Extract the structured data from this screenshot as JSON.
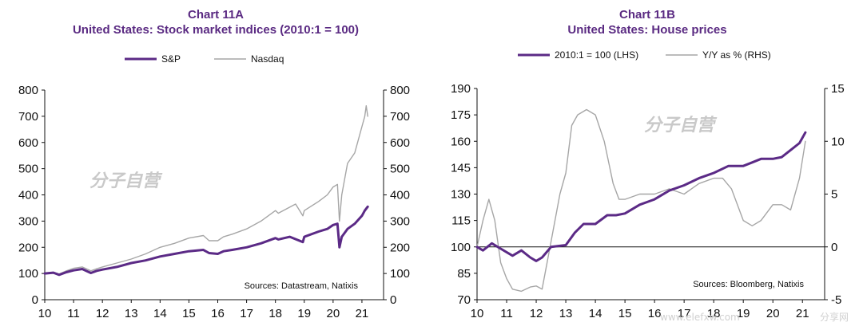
{
  "watermark": "分子自营",
  "corner_watermarks": [
    "www.elefxw.com",
    "分享网"
  ],
  "chart_data": [
    {
      "type": "line",
      "title": "Chart 11A",
      "subtitle": "United States: Stock market indices (2010:1 = 100)",
      "source": "Sources:  Datastream,  Natixis",
      "x_ticks": [
        "10",
        "11",
        "12",
        "13",
        "14",
        "15",
        "16",
        "17",
        "18",
        "19",
        "20",
        "21"
      ],
      "xlim": [
        2010,
        2021.75
      ],
      "y_left": {
        "ticks": [
          "0",
          "100",
          "200",
          "300",
          "400",
          "500",
          "600",
          "700",
          "800"
        ],
        "lim": [
          0,
          800
        ]
      },
      "y_right": {
        "ticks": [
          "0",
          "100",
          "200",
          "300",
          "400",
          "500",
          "600",
          "700",
          "800"
        ],
        "lim": [
          0,
          800
        ]
      },
      "grid": false,
      "legend_position": "top",
      "colors": {
        "sp": "#5b2a86",
        "nasdaq": "#a6a6a6"
      },
      "series": [
        {
          "name": "S&P",
          "axis": "left",
          "color": "#5b2a86",
          "width": 3,
          "x": [
            2010.0,
            2010.3,
            2010.5,
            2010.75,
            2011.0,
            2011.3,
            2011.6,
            2011.8,
            2012.0,
            2012.5,
            2013.0,
            2013.5,
            2014.0,
            2014.5,
            2015.0,
            2015.5,
            2015.7,
            2016.0,
            2016.2,
            2016.5,
            2017.0,
            2017.5,
            2018.0,
            2018.1,
            2018.5,
            2018.95,
            2019.0,
            2019.5,
            2019.8,
            2020.0,
            2020.15,
            2020.22,
            2020.3,
            2020.5,
            2020.75,
            2021.0,
            2021.1,
            2021.2
          ],
          "y": [
            100,
            103,
            95,
            105,
            112,
            117,
            102,
            110,
            115,
            125,
            140,
            150,
            165,
            175,
            185,
            190,
            178,
            175,
            185,
            190,
            200,
            215,
            235,
            230,
            240,
            220,
            240,
            260,
            270,
            285,
            290,
            200,
            240,
            270,
            290,
            320,
            340,
            355
          ]
        },
        {
          "name": "Nasdaq",
          "axis": "left",
          "color": "#a6a6a6",
          "width": 1.4,
          "x": [
            2010.0,
            2010.3,
            2010.5,
            2010.75,
            2011.0,
            2011.3,
            2011.6,
            2011.8,
            2012.0,
            2012.5,
            2013.0,
            2013.5,
            2014.0,
            2014.5,
            2015.0,
            2015.5,
            2015.7,
            2016.0,
            2016.2,
            2016.5,
            2017.0,
            2017.5,
            2018.0,
            2018.1,
            2018.7,
            2018.95,
            2019.0,
            2019.5,
            2019.8,
            2020.0,
            2020.15,
            2020.22,
            2020.3,
            2020.5,
            2020.75,
            2021.0,
            2021.1,
            2021.15,
            2021.2
          ],
          "y": [
            100,
            105,
            98,
            110,
            120,
            125,
            110,
            118,
            125,
            140,
            155,
            175,
            200,
            215,
            235,
            245,
            225,
            225,
            240,
            250,
            270,
            300,
            340,
            330,
            365,
            320,
            340,
            375,
            400,
            430,
            440,
            300,
            400,
            520,
            560,
            660,
            700,
            740,
            700
          ]
        }
      ]
    },
    {
      "type": "line",
      "title": "Chart 11B",
      "subtitle": "United States: House prices",
      "source": "Sources:  Bloomberg,  Natixis",
      "x_ticks": [
        "10",
        "11",
        "12",
        "13",
        "14",
        "15",
        "16",
        "17",
        "18",
        "19",
        "20",
        "21"
      ],
      "xlim": [
        2010,
        2021.75
      ],
      "y_left": {
        "ticks": [
          "70",
          "85",
          "100",
          "115",
          "130",
          "145",
          "160",
          "175",
          "190"
        ],
        "lim": [
          70,
          190
        ]
      },
      "y_right": {
        "ticks": [
          "-5",
          "0",
          "5",
          "10",
          "15"
        ],
        "lim": [
          -5,
          15
        ]
      },
      "grid": false,
      "legend_position": "top",
      "zero_line": true,
      "colors": {
        "lhs": "#5b2a86",
        "rhs": "#a6a6a6"
      },
      "series": [
        {
          "name": "2010:1 = 100 (LHS)",
          "axis": "left",
          "color": "#5b2a86",
          "width": 3,
          "x": [
            2010.0,
            2010.2,
            2010.5,
            2010.8,
            2011.2,
            2011.5,
            2011.8,
            2012.0,
            2012.2,
            2012.5,
            2013.0,
            2013.3,
            2013.6,
            2014.0,
            2014.4,
            2014.7,
            2015.0,
            2015.5,
            2016.0,
            2016.5,
            2017.0,
            2017.5,
            2018.0,
            2018.5,
            2019.0,
            2019.3,
            2019.6,
            2020.0,
            2020.3,
            2020.6,
            2020.9,
            2021.1
          ],
          "y": [
            100,
            98,
            102,
            99,
            95,
            98,
            94,
            92,
            94,
            100,
            101,
            108,
            113,
            113,
            118,
            118,
            119,
            124,
            127,
            132,
            135,
            139,
            142,
            146,
            146,
            148,
            150,
            150,
            151,
            155,
            159,
            165
          ]
        },
        {
          "name": "Y/Y as % (RHS)",
          "axis": "right",
          "color": "#a6a6a6",
          "width": 1.4,
          "x": [
            2010.0,
            2010.2,
            2010.4,
            2010.6,
            2010.8,
            2011.0,
            2011.2,
            2011.5,
            2011.8,
            2012.0,
            2012.2,
            2012.5,
            2012.8,
            2013.0,
            2013.2,
            2013.4,
            2013.7,
            2014.0,
            2014.3,
            2014.6,
            2014.8,
            2015.0,
            2015.5,
            2016.0,
            2016.5,
            2017.0,
            2017.5,
            2018.0,
            2018.3,
            2018.6,
            2019.0,
            2019.3,
            2019.6,
            2020.0,
            2020.3,
            2020.6,
            2020.9,
            2021.1
          ],
          "y": [
            0,
            2.5,
            4.5,
            2.5,
            -1.5,
            -3.0,
            -4.0,
            -4.2,
            -3.8,
            -3.7,
            -4.0,
            0.5,
            5.0,
            7.0,
            11.5,
            12.5,
            13.0,
            12.5,
            10.0,
            6.0,
            4.5,
            4.5,
            5.0,
            5.0,
            5.5,
            5.0,
            6.0,
            6.5,
            6.5,
            5.5,
            2.5,
            2.0,
            2.5,
            4.0,
            4.0,
            3.5,
            6.5,
            10.0
          ]
        }
      ]
    }
  ]
}
